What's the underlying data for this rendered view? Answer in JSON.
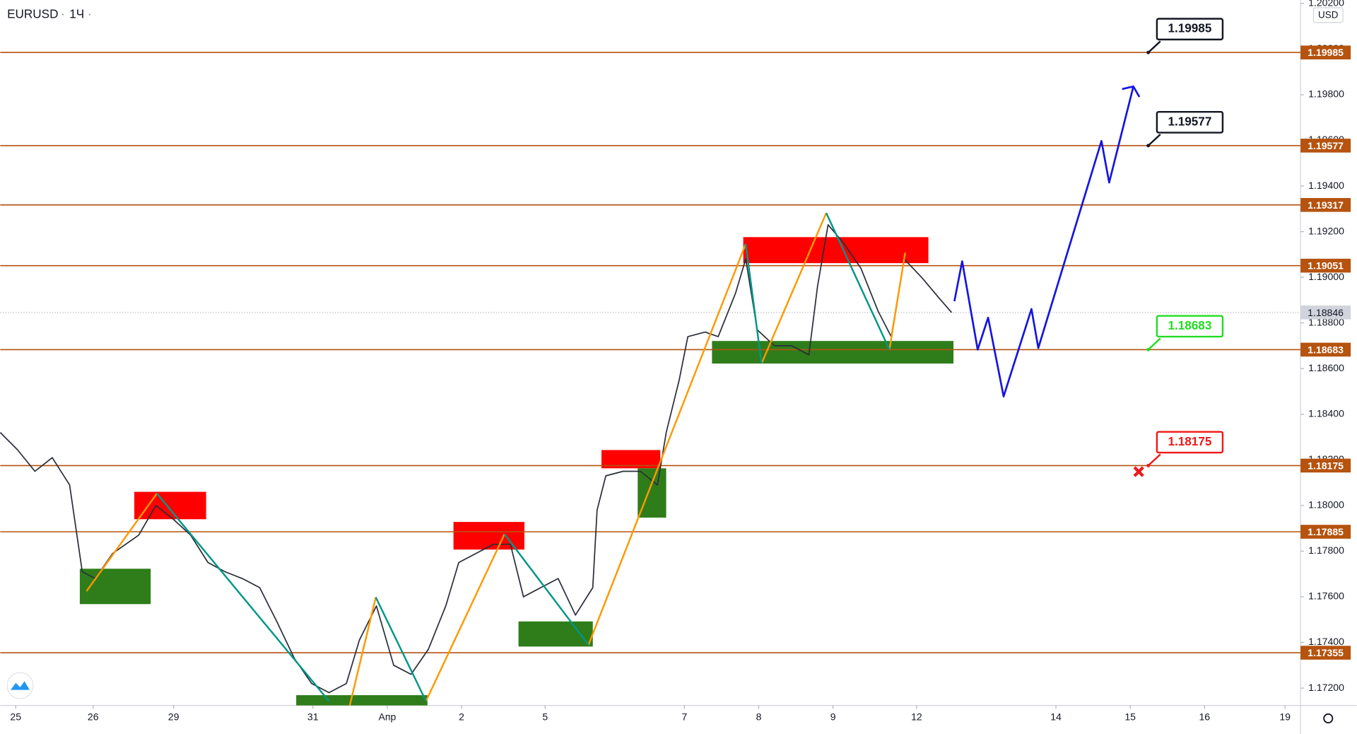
{
  "chart_data": {
    "type": "line",
    "symbol": "EURUSD",
    "interval": "1Ч",
    "currency": "USD",
    "xlim": [
      0,
      420
    ],
    "ylim": [
      1.17124,
      1.20215
    ],
    "xticks": [
      {
        "value": 5,
        "label": "25"
      },
      {
        "value": 30,
        "label": "26"
      },
      {
        "value": 56,
        "label": "29"
      },
      {
        "value": 101,
        "label": "31"
      },
      {
        "value": 125,
        "label": "Апр"
      },
      {
        "value": 149,
        "label": "2"
      },
      {
        "value": 176,
        "label": "5"
      },
      {
        "value": 221,
        "label": "7"
      },
      {
        "value": 245,
        "label": "8"
      },
      {
        "value": 269,
        "label": "9"
      },
      {
        "value": 296,
        "label": "12"
      },
      {
        "value": 341,
        "label": "14"
      },
      {
        "value": 365,
        "label": "15"
      },
      {
        "value": 389,
        "label": "16"
      },
      {
        "value": 415,
        "label": "19"
      }
    ],
    "yticks": [
      {
        "value": 1.172,
        "label": "1.17200"
      },
      {
        "value": 1.174,
        "label": "1.17400"
      },
      {
        "value": 1.176,
        "label": "1.17600"
      },
      {
        "value": 1.178,
        "label": "1.17800"
      },
      {
        "value": 1.18,
        "label": "1.18000"
      },
      {
        "value": 1.182,
        "label": "1.18200"
      },
      {
        "value": 1.184,
        "label": "1.18400"
      },
      {
        "value": 1.186,
        "label": "1.18600"
      },
      {
        "value": 1.188,
        "label": "1.18800"
      },
      {
        "value": 1.19,
        "label": "1.19000"
      },
      {
        "value": 1.192,
        "label": "1.19200"
      },
      {
        "value": 1.194,
        "label": "1.19400"
      },
      {
        "value": 1.196,
        "label": "1.19600"
      },
      {
        "value": 1.198,
        "label": "1.19800"
      },
      {
        "value": 1.2,
        "label": "1.20000"
      },
      {
        "value": 1.202,
        "label": "1.20200"
      }
    ],
    "x": [
      0,
      5.6,
      11.2,
      16.8,
      22.4,
      26.5,
      30.7,
      36.3,
      44.7,
      50.3,
      55.9,
      61.5,
      67.1,
      72.6,
      78.2,
      83.8,
      89.4,
      95.0,
      100.6,
      106.2,
      111.8,
      116.0,
      121.5,
      127.1,
      132.7,
      138.3,
      143.9,
      148.1,
      153.7,
      159.3,
      164.8,
      169.0,
      174.6,
      180.2,
      185.8,
      191.4,
      192.8,
      195.6,
      201.2,
      206.8,
      212.3,
      215.1,
      219.3,
      222.1,
      227.7,
      231.9,
      237.5,
      240.8,
      244.5,
      250.1,
      255.7,
      261.2,
      264.0,
      267.4,
      272.4,
      278.0,
      283.6,
      287.8,
      292.0,
      297.6,
      303.2,
      307.3
    ],
    "series": [
      {
        "color": "#2a2e39",
        "values": [
          1.1832,
          1.18244,
          1.1815,
          1.1821,
          1.1809,
          1.1771,
          1.1768,
          1.1779,
          1.1787,
          1.18,
          1.1794,
          1.1787,
          1.1775,
          1.1771,
          1.1768,
          1.1764,
          1.1749,
          1.1733,
          1.1722,
          1.1718,
          1.1722,
          1.1741,
          1.1756,
          1.173,
          1.1726,
          1.1737,
          1.1756,
          1.1775,
          1.1779,
          1.1783,
          1.1783,
          1.176,
          1.1764,
          1.1768,
          1.1752,
          1.1764,
          1.1798,
          1.1813,
          1.1815,
          1.1815,
          1.1809,
          1.1832,
          1.1855,
          1.1874,
          1.1876,
          1.1874,
          1.1893,
          1.1908,
          1.1877,
          1.187,
          1.187,
          1.1866,
          1.1896,
          1.1923,
          1.1915,
          1.1904,
          1.1885,
          1.1874,
          1.1908,
          1.19,
          1.1891,
          1.18846
        ]
      }
    ],
    "levels": [
      1.19985,
      1.19577,
      1.19317,
      1.19051,
      1.18683,
      1.18175,
      1.17885,
      1.17355
    ],
    "level_color": "#b5530f",
    "last_price": 1.18846,
    "callouts": [
      {
        "value": 1.19985,
        "color": "#131722"
      },
      {
        "value": 1.19577,
        "color": "#131722"
      },
      {
        "value": 1.18683,
        "color": "#22dd22"
      },
      {
        "value": 1.18175,
        "color": "#f01818"
      }
    ],
    "zones": [
      {
        "x": [
          43.3,
          66.5
        ],
        "y": [
          1.1794,
          1.1806
        ],
        "color": "#ff0000"
      },
      {
        "x": [
          25.7,
          48.6
        ],
        "y": [
          1.17568,
          1.17723
        ],
        "color": "#2e7d1a"
      },
      {
        "x": [
          146.4,
          169.3
        ],
        "y": [
          1.17807,
          1.17928
        ],
        "color": "#ff0000"
      },
      {
        "x": [
          167.4,
          191.4
        ],
        "y": [
          1.17382,
          1.17492
        ],
        "color": "#2e7d1a"
      },
      {
        "x": [
          95.6,
          138.0
        ],
        "y": [
          1.17124,
          1.17169
        ],
        "color": "#2e7d1a"
      },
      {
        "x": [
          194.2,
          213.2
        ],
        "y": [
          1.18163,
          1.18243
        ],
        "color": "#ff0000"
      },
      {
        "x": [
          205.9,
          215.1
        ],
        "y": [
          1.17947,
          1.18163
        ],
        "color": "#2e7d1a"
      },
      {
        "x": [
          240.0,
          299.8
        ],
        "y": [
          1.19062,
          1.19176
        ],
        "color": "#ff0000"
      },
      {
        "x": [
          229.9,
          307.9
        ],
        "y": [
          1.18622,
          1.18721
        ],
        "color": "#2e7d1a"
      }
    ],
    "legs": [
      {
        "color": "#ff9800",
        "x": [
          27.9,
          50.6
        ],
        "y": [
          1.17625,
          1.18053
        ]
      },
      {
        "color": "#ff9800",
        "x": [
          112.9,
          121.3
        ],
        "y": [
          1.17124,
          1.17598
        ]
      },
      {
        "color": "#ff9800",
        "x": [
          137.5,
          162.9
        ],
        "y": [
          1.17143,
          1.17875
        ]
      },
      {
        "color": "#ff9800",
        "x": [
          190.0,
          240.8
        ],
        "y": [
          1.17389,
          1.19146
        ]
      },
      {
        "color": "#ff9800",
        "x": [
          245.9,
          266.8
        ],
        "y": [
          1.18622,
          1.19282
        ]
      },
      {
        "color": "#ff9800",
        "x": [
          287.2,
          292.3
        ],
        "y": [
          1.18683,
          1.19108
        ]
      },
      {
        "color": "#009688",
        "x": [
          50.6,
          106.2
        ],
        "y": [
          1.18053,
          1.17143
        ]
      },
      {
        "color": "#009688",
        "x": [
          121.3,
          137.5
        ],
        "y": [
          1.17598,
          1.17143
        ]
      },
      {
        "color": "#009688",
        "x": [
          162.9,
          190.0
        ],
        "y": [
          1.17875,
          1.17389
        ]
      },
      {
        "color": "#009688",
        "x": [
          240.8,
          245.9
        ],
        "y": [
          1.19146,
          1.18622
        ]
      },
      {
        "color": "#009688",
        "x": [
          266.8,
          287.2
        ],
        "y": [
          1.19282,
          1.18683
        ]
      }
    ],
    "projection": {
      "color": "#1515e0",
      "x": [
        308.2,
        310.7,
        315.7,
        319.1,
        324.1,
        333.1,
        335.3,
        355.7,
        358.2,
        366.0
      ],
      "y": [
        1.18895,
        1.1907,
        1.18683,
        1.18823,
        1.18478,
        1.18861,
        1.1869,
        1.19597,
        1.19415,
        1.19836
      ]
    }
  }
}
